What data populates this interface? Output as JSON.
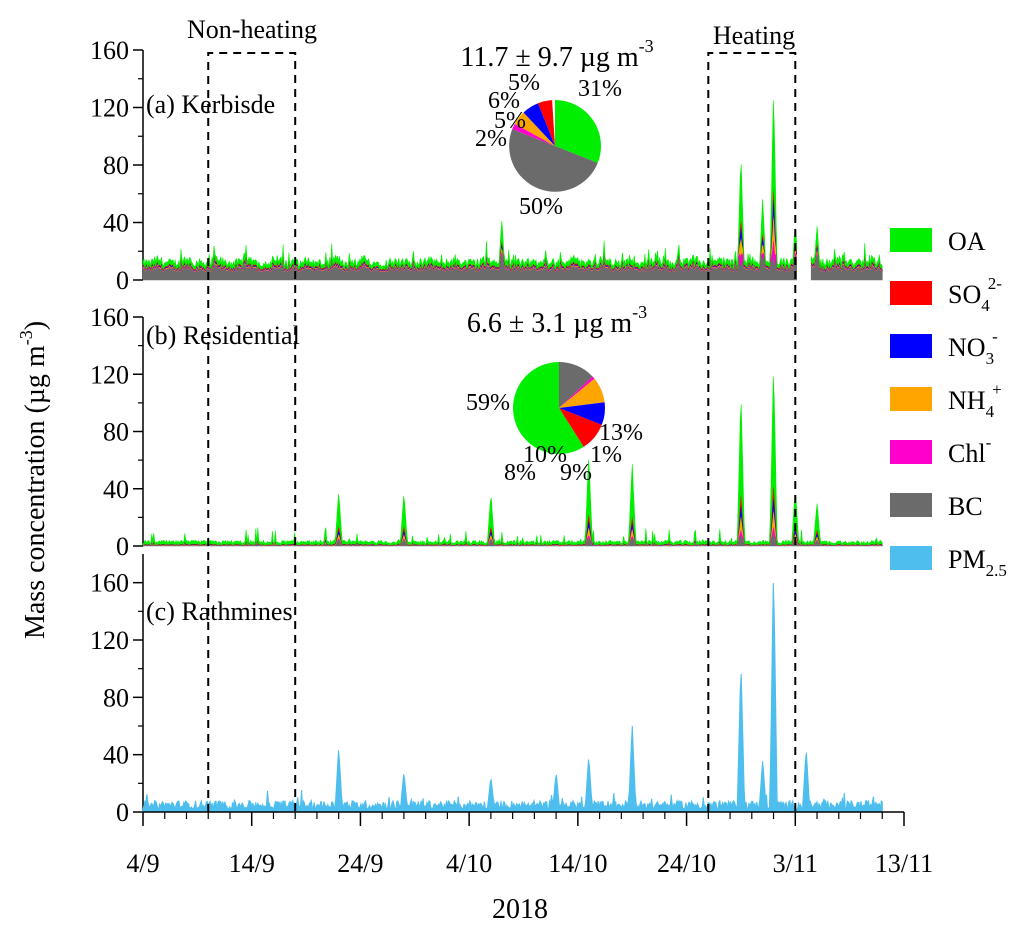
{
  "figure": {
    "ylabel": "Mass concentration (µg m",
    "ylabel_sup": "-3",
    "ylabel_close": ")",
    "xlabel": "2018",
    "period_labels": [
      "Non-heating",
      "Heating"
    ],
    "legend": [
      {
        "label": "OA",
        "sub": "",
        "sup": "",
        "color": "#00ee00"
      },
      {
        "label": "SO",
        "sub": "4",
        "sup": "2-",
        "color": "#ff0000"
      },
      {
        "label": "NO",
        "sub": "3",
        "sup": "-",
        "color": "#0000ff"
      },
      {
        "label": "NH",
        "sub": "4",
        "sup": "+",
        "color": "#ffa500"
      },
      {
        "label": "Chl",
        "sub": "",
        "sup": "-",
        "color": "#ff00cc"
      },
      {
        "label": "BC",
        "sub": "",
        "sup": "",
        "color": "#6b6b6b"
      },
      {
        "label": "PM",
        "sub": "2.5",
        "sup": "",
        "color": "#4dbeee"
      }
    ]
  },
  "chart_data": [
    {
      "type": "area",
      "panel_label": "(a) Kerbisde",
      "mean_text": "11.7 ± 9.7 µg m",
      "mean_sup": "-3",
      "ylim": [
        0,
        160
      ],
      "yticks": [
        "0",
        "40",
        "80",
        "120",
        "160"
      ],
      "x_dates": [
        "2018-09-04",
        "2018-11-11"
      ],
      "series_order": [
        "BC",
        "Chl-",
        "NH4+",
        "NO3-",
        "SO42-",
        "OA"
      ],
      "baseline_approx": {
        "BC": 8,
        "Chl-": 0.3,
        "NH4+": 0.7,
        "NO3-": 0.8,
        "SO42-": 0.8,
        "OA": 5
      },
      "peaks": [
        {
          "date": "2018-10-07",
          "total": 43
        },
        {
          "date": "2018-10-29",
          "total": 87
        },
        {
          "date": "2018-10-31",
          "total": 57
        },
        {
          "date": "2018-11-01",
          "total": 133
        },
        {
          "date": "2018-11-03",
          "total": 40
        },
        {
          "date": "2018-11-05",
          "total": 38
        }
      ],
      "gaps": [
        [
          "2018-11-03",
          "2018-11-04"
        ]
      ],
      "pie": {
        "slices": [
          {
            "name": "OA",
            "pct": 31,
            "label": "31%"
          },
          {
            "name": "BC",
            "pct": 50,
            "label": "50%"
          },
          {
            "name": "Chl-",
            "pct": 2,
            "label": "2%"
          },
          {
            "name": "NH4+",
            "pct": 5,
            "label": "5%"
          },
          {
            "name": "NO3-",
            "pct": 6,
            "label": "6%"
          },
          {
            "name": "SO42-",
            "pct": 5,
            "label": "5%"
          }
        ]
      }
    },
    {
      "type": "area",
      "panel_label": "(b) Residential",
      "mean_text": "6.6 ± 3.1 µg m",
      "mean_sup": "-3",
      "ylim": [
        0,
        160
      ],
      "yticks": [
        "0",
        "40",
        "80",
        "120",
        "160"
      ],
      "x_dates": [
        "2018-09-04",
        "2018-11-11"
      ],
      "peaks": [
        {
          "date": "2018-09-22",
          "total": 38
        },
        {
          "date": "2018-09-28",
          "total": 37
        },
        {
          "date": "2018-10-06",
          "total": 37
        },
        {
          "date": "2018-10-15",
          "total": 64
        },
        {
          "date": "2018-10-19",
          "total": 58
        },
        {
          "date": "2018-10-29",
          "total": 107
        },
        {
          "date": "2018-11-01",
          "total": 126
        },
        {
          "date": "2018-11-03",
          "total": 40
        },
        {
          "date": "2018-11-05",
          "total": 30
        }
      ],
      "pie": {
        "slices": [
          {
            "name": "OA",
            "pct": 59,
            "label": "59%"
          },
          {
            "name": "SO42-",
            "pct": 10,
            "label": "10%"
          },
          {
            "name": "NO3-",
            "pct": 8,
            "label": "8%"
          },
          {
            "name": "NH4+",
            "pct": 9,
            "label": "9%"
          },
          {
            "name": "Chl-",
            "pct": 1,
            "label": "1%"
          },
          {
            "name": "BC",
            "pct": 13,
            "label": "13%"
          }
        ]
      }
    },
    {
      "type": "area",
      "panel_label": "(c) Rathmines",
      "ylim": [
        0,
        180
      ],
      "yticks": [
        "0",
        "40",
        "80",
        "120",
        "160"
      ],
      "x_dates": [
        "2018-09-04",
        "2018-11-11"
      ],
      "series": [
        {
          "name": "PM2.5",
          "baseline": 5
        }
      ],
      "peaks": [
        {
          "date": "2018-09-22",
          "value": 45
        },
        {
          "date": "2018-09-28",
          "value": 28
        },
        {
          "date": "2018-10-06",
          "value": 25
        },
        {
          "date": "2018-10-12",
          "value": 28
        },
        {
          "date": "2018-10-15",
          "value": 39
        },
        {
          "date": "2018-10-19",
          "value": 61
        },
        {
          "date": "2018-10-29",
          "value": 104
        },
        {
          "date": "2018-10-31",
          "value": 36
        },
        {
          "date": "2018-11-01",
          "value": 170
        },
        {
          "date": "2018-11-04",
          "value": 44
        }
      ]
    }
  ],
  "xaxis": {
    "ticks": [
      {
        "date": "2018-09-04",
        "label": "4/9"
      },
      {
        "date": "2018-09-14",
        "label": "14/9"
      },
      {
        "date": "2018-09-24",
        "label": "24/9"
      },
      {
        "date": "2018-10-04",
        "label": "4/10"
      },
      {
        "date": "2018-10-14",
        "label": "14/10"
      },
      {
        "date": "2018-10-24",
        "label": "24/10"
      },
      {
        "date": "2018-11-03",
        "label": "3/11"
      },
      {
        "date": "2018-11-13",
        "label": "13/11"
      }
    ],
    "range": [
      "2018-09-04",
      "2018-11-13"
    ]
  },
  "periods": [
    {
      "name": "Non-heating",
      "start": "2018-09-10",
      "end": "2018-09-18"
    },
    {
      "name": "Heating",
      "start": "2018-10-26",
      "end": "2018-11-03"
    }
  ]
}
